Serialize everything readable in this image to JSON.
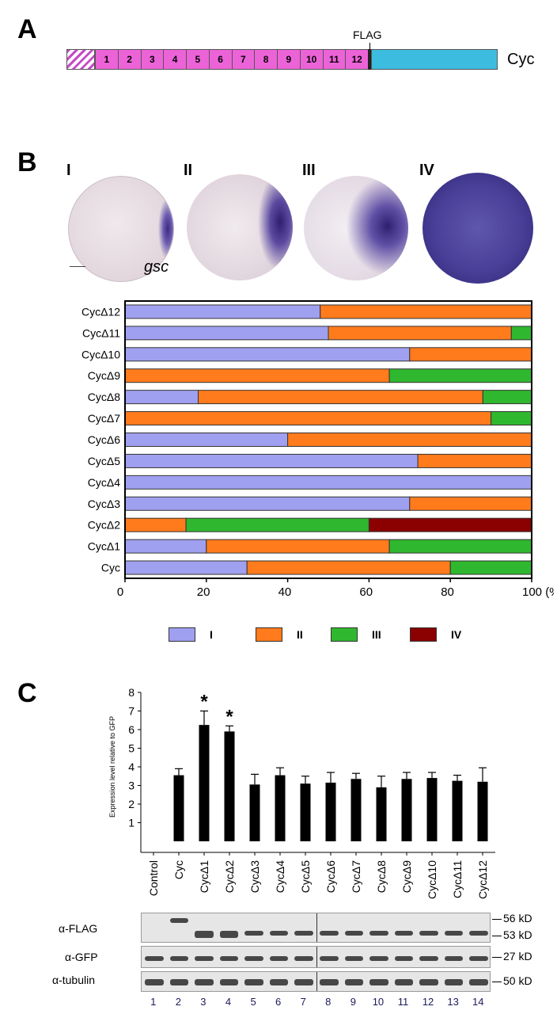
{
  "panelA": {
    "letter": "A",
    "flag_label": "FLAG",
    "construct_label": "Cyc",
    "domains": [
      "1",
      "2",
      "3",
      "4",
      "5",
      "6",
      "7",
      "8",
      "9",
      "10",
      "11",
      "12"
    ],
    "colors": {
      "domain": "#ec63d8",
      "prodomain_hatch": "#c64bc6",
      "mature": "#3cbde0"
    }
  },
  "panelB": {
    "letter": "B",
    "stage_labels": [
      "I",
      "II",
      "III",
      "IV"
    ],
    "gene_label": "gsc"
  },
  "chart_data": [
    {
      "type": "bar",
      "orientation": "horizontal-stacked",
      "categories": [
        "CycΔ12",
        "CycΔ11",
        "CycΔ10",
        "CycΔ9",
        "CycΔ8",
        "CycΔ7",
        "CycΔ6",
        "CycΔ5",
        "CycΔ4",
        "CycΔ3",
        "CycΔ2",
        "CycΔ1",
        "Cyc"
      ],
      "series": [
        {
          "name": "I",
          "color": "#a0a0f0",
          "values": [
            48,
            50,
            70,
            0,
            18,
            0,
            40,
            72,
            100,
            70,
            0,
            20,
            30
          ]
        },
        {
          "name": "II",
          "color": "#ff7b1c",
          "values": [
            52,
            45,
            30,
            65,
            70,
            90,
            60,
            28,
            0,
            30,
            15,
            45,
            50
          ]
        },
        {
          "name": "III",
          "color": "#2fb82f",
          "values": [
            0,
            5,
            0,
            35,
            12,
            10,
            0,
            0,
            0,
            0,
            45,
            35,
            20
          ]
        },
        {
          "name": "IV",
          "color": "#8b0000",
          "values": [
            0,
            0,
            0,
            0,
            0,
            0,
            0,
            0,
            0,
            0,
            40,
            0,
            0
          ]
        }
      ],
      "xlim": [
        0,
        100
      ],
      "xticks": [
        "0",
        "20",
        "40",
        "60",
        "80",
        "100 (%)"
      ]
    },
    {
      "type": "bar",
      "categories": [
        "Control",
        "Cyc",
        "CycΔ1",
        "CycΔ2",
        "CycΔ3",
        "CycΔ4",
        "CycΔ5",
        "CycΔ6",
        "CycΔ7",
        "CycΔ8",
        "CycΔ9",
        "CycΔ10",
        "CycΔ11",
        "CycΔ12"
      ],
      "values": [
        0,
        3.55,
        6.25,
        5.9,
        3.05,
        3.55,
        3.1,
        3.15,
        3.35,
        2.9,
        3.35,
        3.4,
        3.25,
        3.2
      ],
      "errors": [
        0,
        0.35,
        0.75,
        0.3,
        0.55,
        0.4,
        0.4,
        0.55,
        0.3,
        0.6,
        0.35,
        0.3,
        0.3,
        0.75
      ],
      "significant": [
        "",
        "",
        "*",
        "*",
        "",
        "",
        "",
        "",
        "",
        "",
        "",
        "",
        "",
        ""
      ],
      "ylabel": "Expression level relative to GFP",
      "ylim": [
        0,
        8
      ],
      "yticks": [
        "1",
        "2",
        "3",
        "4",
        "5",
        "6",
        "7",
        "8"
      ]
    }
  ],
  "panelC": {
    "letter": "C",
    "blot_rows": [
      "α-FLAG",
      "α-GFP",
      "α-tubulin"
    ],
    "kd_labels": [
      "56 kD",
      "53 kD",
      "27 kD",
      "50 kD"
    ],
    "lanes": [
      "1",
      "2",
      "3",
      "4",
      "5",
      "6",
      "7",
      "8",
      "9",
      "10",
      "11",
      "12",
      "13",
      "14"
    ]
  }
}
